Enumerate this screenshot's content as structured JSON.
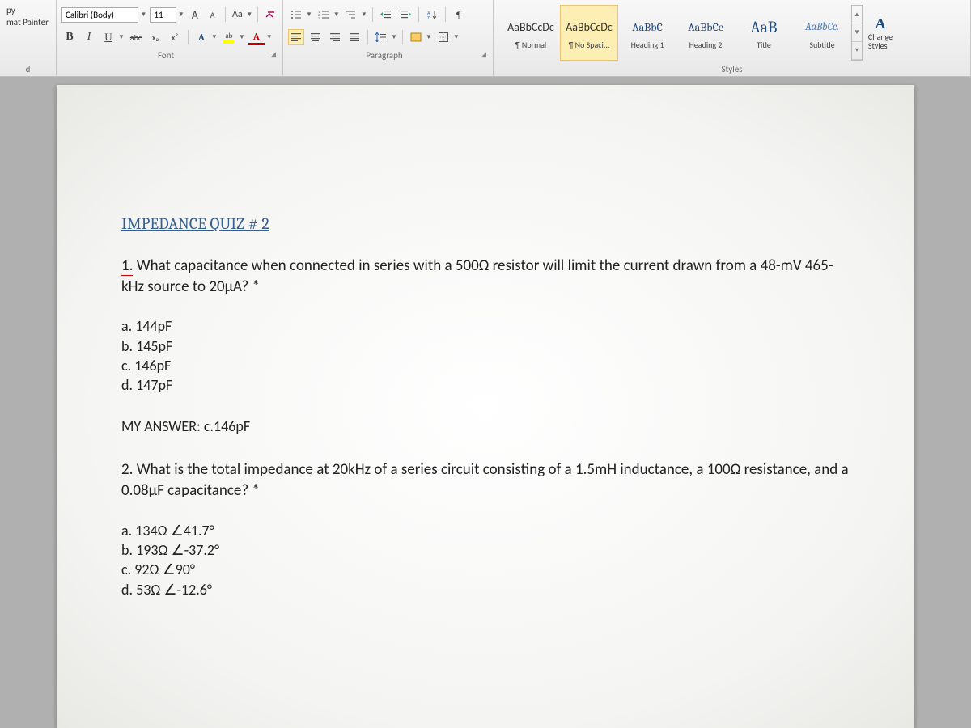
{
  "ribbon": {
    "font": {
      "name": "Calibri (Body)",
      "size": "11",
      "grow": "A",
      "shrink": "A",
      "case": "Aa",
      "clear": "⌫",
      "bold": "B",
      "italic": "I",
      "underline": "U",
      "strike": "abc",
      "sub": "x₂",
      "sup": "x²",
      "textfx": "A",
      "highlight": " ",
      "fontcolor": "A",
      "label": "Font"
    },
    "paragraph": {
      "bullets": "≡",
      "numbers": "≡",
      "multilevel": "≡",
      "dec_indent": "⇤",
      "inc_indent": "⇥",
      "sort": "↓",
      "marks": "¶",
      "align_l": "≡",
      "align_c": "≡",
      "align_r": "≡",
      "align_j": "≡",
      "linesp": "‡",
      "shading": "◪",
      "borders": "▦",
      "label": "Paragraph"
    },
    "clipboard": {
      "copy": "py",
      "painter": "mat Painter",
      "label": "d"
    },
    "styles": {
      "items": [
        {
          "sample": "AaBbCcDc",
          "label": "¶ Normal",
          "cls": ""
        },
        {
          "sample": "AaBbCcDc",
          "label": "¶ No Spaci...",
          "cls": ""
        },
        {
          "sample": "AaBbC",
          "label": "Heading 1",
          "cls": "heading"
        },
        {
          "sample": "AaBbCc",
          "label": "Heading 2",
          "cls": "heading"
        },
        {
          "sample": "AaB",
          "label": "Title",
          "cls": "big"
        },
        {
          "sample": "AaBbCc.",
          "label": "Subtitle",
          "cls": "subtitle"
        }
      ],
      "label": "Styles",
      "change": "Change Styles"
    }
  },
  "document": {
    "title": "IMPEDANCE QUIZ # 2",
    "q1": {
      "num": "1.",
      "text": " What capacitance when connected in series with a 500Ω resistor will limit the current drawn from a 48-mV 465-kHz source to 20µA? *",
      "opts": {
        "a": "a. 144pF",
        "b": "b. 145pF",
        "c": "c. 146pF",
        "d": "d. 147pF"
      },
      "answer": "MY ANSWER: c.146pF"
    },
    "q2": {
      "num": "2.",
      "text": " What is the total impedance at 20kHz of a series circuit consisting of a 1.5mH inductance, a 100Ω resistance, and a 0.08µF capacitance? *",
      "opts": {
        "a": "a. 134Ω ∠41.7°",
        "b": "b. 193Ω ∠-37.2°",
        "c": "c. 92Ω ∠90°",
        "d": "d. 53Ω ∠-12.6°"
      }
    }
  }
}
